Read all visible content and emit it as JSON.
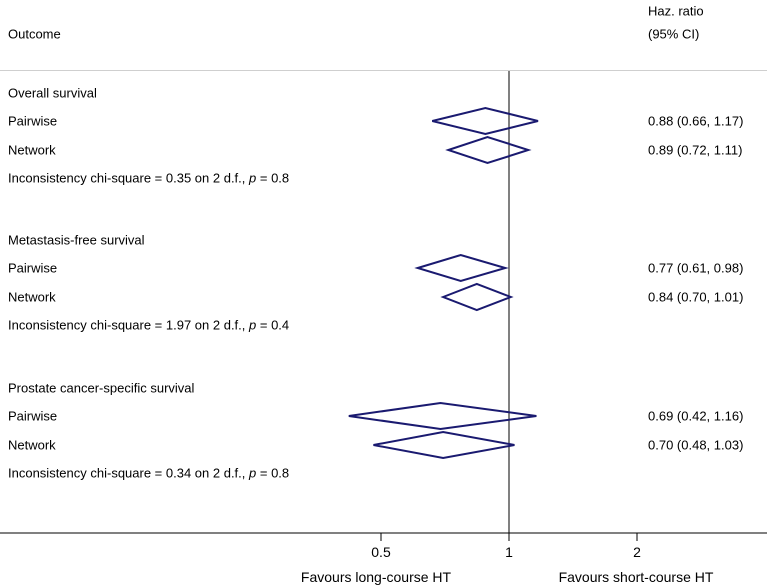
{
  "header": {
    "outcome_label": "Outcome",
    "hr_label_line1": "Haz. ratio",
    "hr_label_line2": "(95% CI)"
  },
  "footer": {
    "left": "Favours long-course HT",
    "right": "Favours short-course HT"
  },
  "colors": {
    "diamond": "#1a1a70",
    "axis": "#000000",
    "divider": "#cfcfcf",
    "text": "#000000"
  },
  "chart_data": {
    "type": "forest",
    "x_axis": {
      "scale": "log2",
      "ref_value": 1,
      "range": [
        0.42,
        2.0
      ],
      "ticks": [
        {
          "label": "0.5",
          "value": 0.5
        },
        {
          "label": "1",
          "value": 1
        },
        {
          "label": "2",
          "value": 2
        }
      ]
    },
    "sections": [
      {
        "title": "Overall survival",
        "rows": [
          {
            "label": "Pairwise",
            "hr": 0.88,
            "lo": 0.66,
            "hi": 1.17,
            "display": "0.88 (0.66, 1.17)"
          },
          {
            "label": "Network",
            "hr": 0.89,
            "lo": 0.72,
            "hi": 1.11,
            "display": "0.89 (0.72, 1.11)"
          }
        ],
        "note_parts": [
          "Inconsistency chi-square = 0.35 on 2 d.f., ",
          "p",
          " = 0.8"
        ]
      },
      {
        "title": "Metastasis-free survival",
        "rows": [
          {
            "label": "Pairwise",
            "hr": 0.77,
            "lo": 0.61,
            "hi": 0.98,
            "display": "0.77 (0.61, 0.98)"
          },
          {
            "label": "Network",
            "hr": 0.84,
            "lo": 0.7,
            "hi": 1.01,
            "display": "0.84 (0.70, 1.01)"
          }
        ],
        "note_parts": [
          "Inconsistency chi-square = 1.97 on 2 d.f., ",
          "p",
          " = 0.4"
        ]
      },
      {
        "title": "Prostate cancer-specific survival",
        "rows": [
          {
            "label": "Pairwise",
            "hr": 0.69,
            "lo": 0.42,
            "hi": 1.16,
            "display": "0.69 (0.42, 1.16)"
          },
          {
            "label": "Network",
            "hr": 0.7,
            "lo": 0.48,
            "hi": 1.03,
            "display": "0.70 (0.48, 1.03)"
          }
        ],
        "note_parts": [
          "Inconsistency chi-square = 0.34 on 2 d.f., ",
          "p",
          " = 0.8"
        ]
      }
    ]
  }
}
